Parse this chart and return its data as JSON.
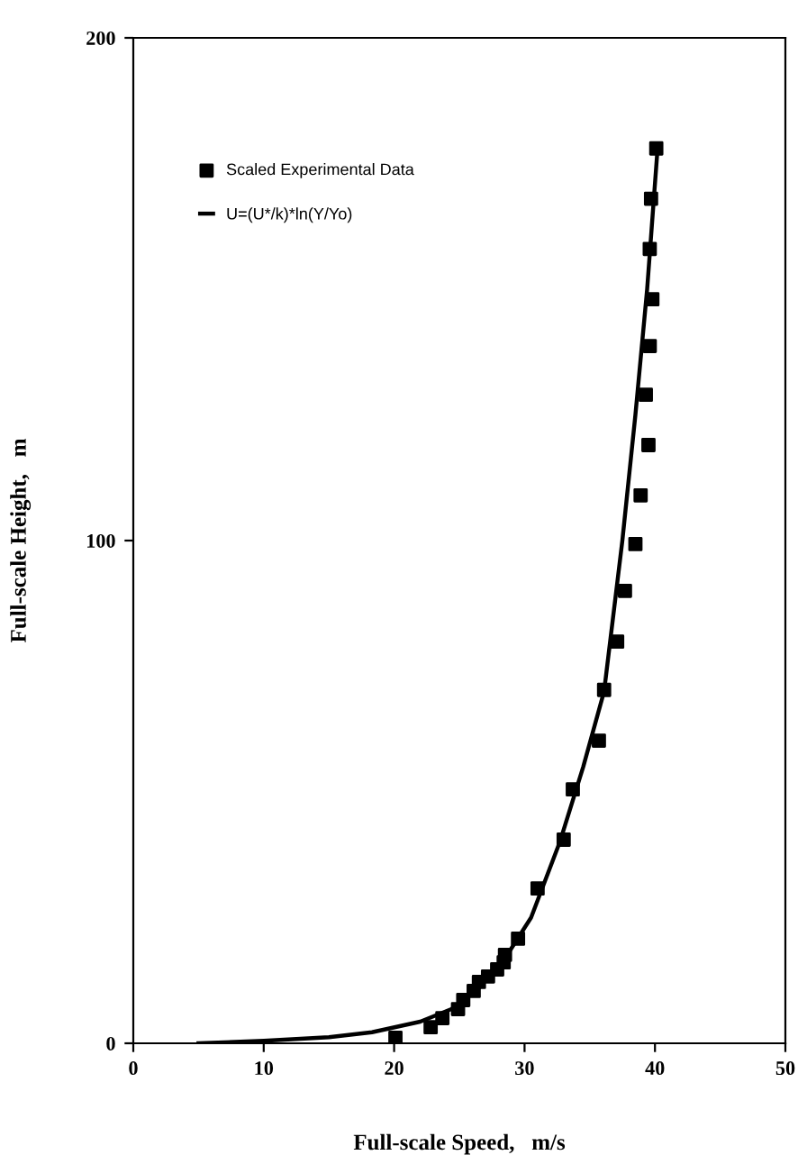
{
  "chart_data": {
    "type": "scatter",
    "xlabel": "Full-scale Speed,   m/s",
    "ylabel": "Full-scale Height,   m",
    "xlim": [
      0,
      50
    ],
    "ylim": [
      0,
      200
    ],
    "xticks": [
      0,
      10,
      20,
      30,
      40,
      50
    ],
    "yticks": [
      0,
      100,
      200
    ],
    "grid": false,
    "legend": "top left",
    "series": [
      {
        "name": "Scaled Experimental Data",
        "marker": "square",
        "color": "#000000",
        "x": [
          20.1,
          22.8,
          23.7,
          24.9,
          25.3,
          26.1,
          26.5,
          27.2,
          27.9,
          28.4,
          28.5,
          29.5,
          31.0,
          33.0,
          33.7,
          35.7,
          36.1,
          37.1,
          37.7,
          38.5,
          38.9,
          39.5,
          39.3,
          39.6,
          39.8,
          39.6,
          39.7,
          40.1
        ],
        "values": [
          1.1,
          3.2,
          5.0,
          6.8,
          8.6,
          10.4,
          12.2,
          13.3,
          14.7,
          16.1,
          17.6,
          20.8,
          30.8,
          40.5,
          50.5,
          60.2,
          70.3,
          79.9,
          90,
          99.3,
          109,
          119,
          129,
          138.7,
          148,
          158,
          168,
          178
        ]
      },
      {
        "name": "U=(U*/k)*ln(Y/Yo)",
        "type": "line",
        "marker": "none",
        "line_style": "solid",
        "color": "#000000",
        "x": [
          5,
          10,
          15,
          18.3,
          22,
          24.4,
          26.5,
          28.4,
          30.5,
          32.7,
          34.5,
          36.1,
          37.5,
          38.5,
          39.4,
          40.2
        ],
        "values": [
          0,
          0.5,
          1.2,
          2.2,
          4.3,
          6.8,
          11,
          16.5,
          25,
          40,
          55,
          70,
          100,
          125,
          150,
          178
        ]
      }
    ]
  }
}
